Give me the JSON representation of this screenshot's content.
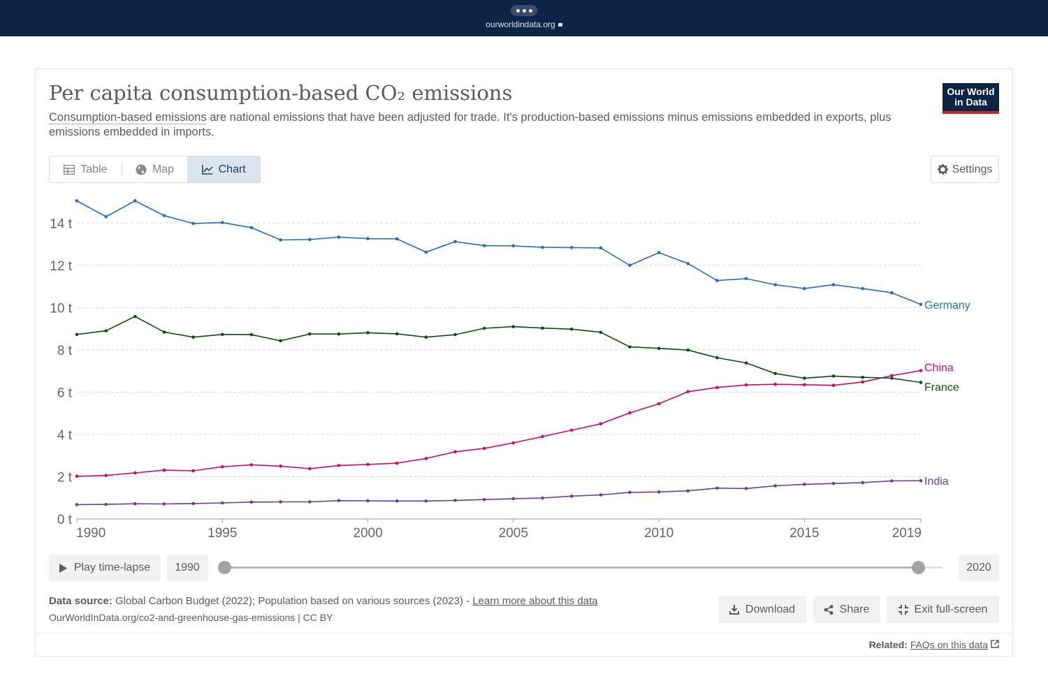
{
  "browser": {
    "url": "ourworldindata.org"
  },
  "header": {
    "title": "Per capita consumption-based CO₂ emissions",
    "subtitle_link": "Consumption-based emissions",
    "subtitle_rest": " are national emissions that have been adjusted for trade. It's production-based emissions minus emissions embedded in exports, plus emissions embedded in imports.",
    "logo_line1": "Our World",
    "logo_line2": "in Data"
  },
  "tabs": [
    {
      "label": "Table",
      "icon": "table-icon"
    },
    {
      "label": "Map",
      "icon": "globe-icon"
    },
    {
      "label": "Chart",
      "icon": "line-chart-icon",
      "active": true
    }
  ],
  "settings_label": "Settings",
  "chart_data": {
    "type": "line",
    "title": "Per capita consumption-based CO₂ emissions",
    "y_unit": "t",
    "ylim": [
      0,
      15
    ],
    "xlim": [
      1990,
      2019
    ],
    "x_ticks": [
      "1990",
      "1995",
      "2000",
      "2005",
      "2010",
      "2015",
      "2019"
    ],
    "y_ticks": [
      "0 t",
      "2 t",
      "4 t",
      "6 t",
      "8 t",
      "10 t",
      "12 t",
      "14 t"
    ],
    "grid": true,
    "x": [
      1990,
      1991,
      1992,
      1993,
      1994,
      1995,
      1996,
      1997,
      1998,
      1999,
      2000,
      2001,
      2002,
      2003,
      2004,
      2005,
      2006,
      2007,
      2008,
      2009,
      2010,
      2011,
      2012,
      2013,
      2014,
      2015,
      2016,
      2017,
      2018,
      2019
    ],
    "series": [
      {
        "name": "Germany",
        "color": "#286bbb",
        "values": [
          15.05,
          14.3,
          15.05,
          14.35,
          13.98,
          14.02,
          13.78,
          13.2,
          13.22,
          13.33,
          13.26,
          13.25,
          12.62,
          13.12,
          12.93,
          12.92,
          12.85,
          12.84,
          12.82,
          12.0,
          12.6,
          12.08,
          11.28,
          11.37,
          11.08,
          10.9,
          11.08,
          10.9,
          10.7,
          10.15
        ]
      },
      {
        "name": "China",
        "color": "#cf0a66",
        "values": [
          2.02,
          2.06,
          2.18,
          2.31,
          2.28,
          2.47,
          2.56,
          2.5,
          2.38,
          2.53,
          2.58,
          2.64,
          2.86,
          3.18,
          3.34,
          3.6,
          3.9,
          4.2,
          4.5,
          5.02,
          5.45,
          6.02,
          6.22,
          6.34,
          6.37,
          6.35,
          6.32,
          6.48,
          6.78,
          7.02
        ]
      },
      {
        "name": "France",
        "color": "#0d4e14",
        "values": [
          8.73,
          8.9,
          9.58,
          8.84,
          8.6,
          8.73,
          8.72,
          8.43,
          8.75,
          8.75,
          8.81,
          8.76,
          8.6,
          8.72,
          9.02,
          9.1,
          9.03,
          8.98,
          8.83,
          8.14,
          8.07,
          7.99,
          7.63,
          7.38,
          6.88,
          6.66,
          6.76,
          6.7,
          6.66,
          6.46
        ]
      },
      {
        "name": "India",
        "color": "#6d3e91",
        "values": [
          0.68,
          0.69,
          0.72,
          0.71,
          0.73,
          0.76,
          0.8,
          0.81,
          0.81,
          0.87,
          0.86,
          0.85,
          0.85,
          0.88,
          0.92,
          0.96,
          0.99,
          1.08,
          1.14,
          1.26,
          1.28,
          1.33,
          1.46,
          1.44,
          1.57,
          1.64,
          1.68,
          1.72,
          1.8,
          1.81
        ]
      }
    ]
  },
  "timeline": {
    "play_label": "Play time-lapse",
    "start_year": "1990",
    "end_year": "2020"
  },
  "footer": {
    "source_label": "Data source:",
    "source_text": " Global Carbon Budget (2022); Population based on various sources (2023) - ",
    "learn_more": "Learn more about this data",
    "url_line": "OurWorldInData.org/co2-and-greenhouse-gas-emissions | CC BY",
    "download": "Download",
    "share": "Share",
    "exit_fullscreen": "Exit full-screen",
    "related_label": "Related:",
    "related_link": "FAQs on this data"
  }
}
